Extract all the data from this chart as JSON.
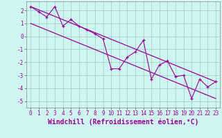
{
  "xlabel": "Windchill (Refroidissement éolien,°C)",
  "x_data": [
    0,
    1,
    2,
    3,
    4,
    5,
    6,
    7,
    8,
    9,
    10,
    11,
    12,
    13,
    14,
    15,
    16,
    17,
    18,
    19,
    20,
    21,
    22,
    23
  ],
  "y_data": [
    2.3,
    1.9,
    1.5,
    2.3,
    0.8,
    1.3,
    0.8,
    0.5,
    0.2,
    -0.2,
    -2.5,
    -2.5,
    -1.6,
    -1.2,
    -0.3,
    -3.3,
    -2.2,
    -1.9,
    -3.1,
    -3.0,
    -4.8,
    -3.3,
    -3.9,
    -3.5
  ],
  "line1_x": [
    0,
    23
  ],
  "line1_y": [
    2.3,
    -3.5
  ],
  "line2_x": [
    0,
    23
  ],
  "line2_y": [
    1.0,
    -4.8
  ],
  "xlim": [
    -0.5,
    23.5
  ],
  "ylim": [
    -5.5,
    2.7
  ],
  "yticks": [
    -5,
    -4,
    -3,
    -2,
    -1,
    0,
    1,
    2
  ],
  "xticks": [
    0,
    1,
    2,
    3,
    4,
    5,
    6,
    7,
    8,
    9,
    10,
    11,
    12,
    13,
    14,
    15,
    16,
    17,
    18,
    19,
    20,
    21,
    22,
    23
  ],
  "line_color": "#990099",
  "bg_color": "#cef5ef",
  "grid_color": "#99cccc",
  "tick_fontsize": 5.5,
  "label_fontsize": 7.0
}
